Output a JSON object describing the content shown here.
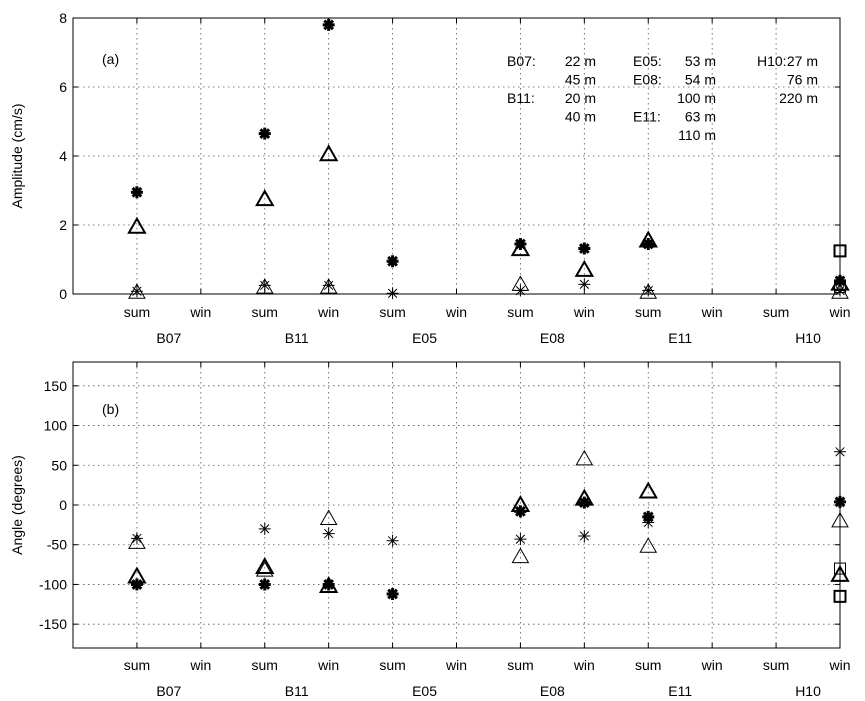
{
  "chart_data": [
    {
      "type": "scatter",
      "panel_label": "(a)",
      "ylabel": "Amplitude (cm/s)",
      "ylim": [
        0,
        8
      ],
      "yticks": [
        0,
        2,
        4,
        6,
        8
      ],
      "xlim": [
        0,
        12
      ],
      "x_ticks": [
        {
          "x": 1,
          "label": "sum"
        },
        {
          "x": 2,
          "label": "win"
        },
        {
          "x": 3,
          "label": "sum"
        },
        {
          "x": 4,
          "label": "win"
        },
        {
          "x": 5,
          "label": "sum"
        },
        {
          "x": 6,
          "label": "win"
        },
        {
          "x": 7,
          "label": "sum"
        },
        {
          "x": 8,
          "label": "win"
        },
        {
          "x": 9,
          "label": "sum"
        },
        {
          "x": 10,
          "label": "win"
        },
        {
          "x": 11,
          "label": "sum"
        },
        {
          "x": 12,
          "label": "win"
        }
      ],
      "groups": [
        {
          "x": 1.5,
          "label": "B07"
        },
        {
          "x": 3.5,
          "label": "B11"
        },
        {
          "x": 5.5,
          "label": "E05"
        },
        {
          "x": 7.5,
          "label": "E08"
        },
        {
          "x": 9.5,
          "label": "E11"
        },
        {
          "x": 11.5,
          "label": "H10"
        }
      ],
      "grid": true,
      "annotations": [
        {
          "col": 0,
          "row": 0,
          "station": "B07:",
          "depth": "22 m"
        },
        {
          "col": 0,
          "row": 1,
          "station": "",
          "depth": "45 m"
        },
        {
          "col": 0,
          "row": 2,
          "station": "B11:",
          "depth": "20 m"
        },
        {
          "col": 0,
          "row": 3,
          "station": "",
          "depth": "40 m"
        },
        {
          "col": 1,
          "row": 0,
          "station": "E05:",
          "depth": "53 m"
        },
        {
          "col": 1,
          "row": 1,
          "station": "E08:",
          "depth": "54 m"
        },
        {
          "col": 1,
          "row": 2,
          "station": "",
          "depth": "100 m"
        },
        {
          "col": 1,
          "row": 3,
          "station": "E11:",
          "depth": "63 m"
        },
        {
          "col": 1,
          "row": 4,
          "station": "",
          "depth": "110 m"
        },
        {
          "col": 2,
          "row": 0,
          "station": "H10:",
          "depth": "27 m"
        },
        {
          "col": 2,
          "row": 1,
          "station": "",
          "depth": "76 m"
        },
        {
          "col": 2,
          "row": 2,
          "station": "",
          "depth": "220 m"
        }
      ],
      "points": [
        {
          "x": 1,
          "y": 2.95,
          "marker": "star-bold"
        },
        {
          "x": 1,
          "y": 1.95,
          "marker": "triangle-bold"
        },
        {
          "x": 1,
          "y": 0.08,
          "marker": "star"
        },
        {
          "x": 1,
          "y": 0.05,
          "marker": "triangle"
        },
        {
          "x": 3,
          "y": 4.65,
          "marker": "star-bold"
        },
        {
          "x": 3,
          "y": 2.75,
          "marker": "triangle-bold"
        },
        {
          "x": 3,
          "y": 0.25,
          "marker": "star"
        },
        {
          "x": 3,
          "y": 0.2,
          "marker": "triangle"
        },
        {
          "x": 4,
          "y": 7.8,
          "marker": "star-bold"
        },
        {
          "x": 4,
          "y": 4.05,
          "marker": "triangle-bold"
        },
        {
          "x": 4,
          "y": 0.25,
          "marker": "star"
        },
        {
          "x": 4,
          "y": 0.2,
          "marker": "triangle"
        },
        {
          "x": 5,
          "y": 0.95,
          "marker": "star-bold"
        },
        {
          "x": 5,
          "y": 0.02,
          "marker": "star"
        },
        {
          "x": 7,
          "y": 1.45,
          "marker": "star-bold"
        },
        {
          "x": 7,
          "y": 1.3,
          "marker": "triangle-bold"
        },
        {
          "x": 7,
          "y": 0.28,
          "marker": "triangle"
        },
        {
          "x": 7,
          "y": 0.1,
          "marker": "star"
        },
        {
          "x": 8,
          "y": 1.32,
          "marker": "star-bold"
        },
        {
          "x": 8,
          "y": 0.7,
          "marker": "triangle-bold"
        },
        {
          "x": 8,
          "y": 0.28,
          "marker": "star"
        },
        {
          "x": 9,
          "y": 1.55,
          "marker": "triangle-bold"
        },
        {
          "x": 9,
          "y": 1.45,
          "marker": "star-bold"
        },
        {
          "x": 9,
          "y": 0.1,
          "marker": "star"
        },
        {
          "x": 9,
          "y": 0.05,
          "marker": "triangle"
        },
        {
          "x": 12,
          "y": 1.25,
          "marker": "square-bold"
        },
        {
          "x": 12,
          "y": 0.38,
          "marker": "star-bold"
        },
        {
          "x": 12,
          "y": 0.3,
          "marker": "triangle-bold"
        },
        {
          "x": 12,
          "y": 0.2,
          "marker": "square"
        },
        {
          "x": 12,
          "y": 0.1,
          "marker": "star"
        },
        {
          "x": 12,
          "y": 0.05,
          "marker": "triangle"
        }
      ]
    },
    {
      "type": "scatter",
      "panel_label": "(b)",
      "ylabel": "Angle (degrees)",
      "ylim": [
        -180,
        180
      ],
      "yticks": [
        -150,
        -100,
        -50,
        0,
        50,
        100,
        150
      ],
      "xlim": [
        0,
        12
      ],
      "x_ticks": [
        {
          "x": 1,
          "label": "sum"
        },
        {
          "x": 2,
          "label": "win"
        },
        {
          "x": 3,
          "label": "sum"
        },
        {
          "x": 4,
          "label": "win"
        },
        {
          "x": 5,
          "label": "sum"
        },
        {
          "x": 6,
          "label": "win"
        },
        {
          "x": 7,
          "label": "sum"
        },
        {
          "x": 8,
          "label": "win"
        },
        {
          "x": 9,
          "label": "sum"
        },
        {
          "x": 10,
          "label": "win"
        },
        {
          "x": 11,
          "label": "sum"
        },
        {
          "x": 12,
          "label": "win"
        }
      ],
      "groups": [
        {
          "x": 1.5,
          "label": "B07"
        },
        {
          "x": 3.5,
          "label": "B11"
        },
        {
          "x": 5.5,
          "label": "E05"
        },
        {
          "x": 7.5,
          "label": "E08"
        },
        {
          "x": 9.5,
          "label": "E11"
        },
        {
          "x": 11.5,
          "label": "H10"
        }
      ],
      "grid": true,
      "points": [
        {
          "x": 1,
          "y": -42,
          "marker": "star"
        },
        {
          "x": 1,
          "y": -47,
          "marker": "triangle"
        },
        {
          "x": 1,
          "y": -90,
          "marker": "triangle-bold"
        },
        {
          "x": 1,
          "y": -100,
          "marker": "star-bold"
        },
        {
          "x": 3,
          "y": -30,
          "marker": "star"
        },
        {
          "x": 3,
          "y": -78,
          "marker": "triangle-bold"
        },
        {
          "x": 3,
          "y": -82,
          "marker": "triangle"
        },
        {
          "x": 3,
          "y": -100,
          "marker": "star-bold"
        },
        {
          "x": 4,
          "y": -17,
          "marker": "triangle"
        },
        {
          "x": 4,
          "y": -36,
          "marker": "star"
        },
        {
          "x": 4,
          "y": -100,
          "marker": "star-bold"
        },
        {
          "x": 4,
          "y": -102,
          "marker": "triangle-bold"
        },
        {
          "x": 5,
          "y": -45,
          "marker": "star"
        },
        {
          "x": 5,
          "y": -112,
          "marker": "star-bold"
        },
        {
          "x": 7,
          "y": 0,
          "marker": "triangle-bold"
        },
        {
          "x": 7,
          "y": -8,
          "marker": "star-bold"
        },
        {
          "x": 7,
          "y": -43,
          "marker": "star"
        },
        {
          "x": 7,
          "y": -65,
          "marker": "triangle"
        },
        {
          "x": 8,
          "y": 58,
          "marker": "triangle"
        },
        {
          "x": 8,
          "y": 8,
          "marker": "triangle-bold"
        },
        {
          "x": 8,
          "y": 3,
          "marker": "star-bold"
        },
        {
          "x": 8,
          "y": -39,
          "marker": "star"
        },
        {
          "x": 9,
          "y": 17,
          "marker": "triangle-bold"
        },
        {
          "x": 9,
          "y": -15,
          "marker": "star-bold"
        },
        {
          "x": 9,
          "y": -22,
          "marker": "star"
        },
        {
          "x": 9,
          "y": -52,
          "marker": "triangle"
        },
        {
          "x": 12,
          "y": 67,
          "marker": "star"
        },
        {
          "x": 12,
          "y": 4,
          "marker": "star-bold"
        },
        {
          "x": 12,
          "y": -20,
          "marker": "triangle"
        },
        {
          "x": 12,
          "y": -80,
          "marker": "square"
        },
        {
          "x": 12,
          "y": -88,
          "marker": "triangle-bold"
        },
        {
          "x": 12,
          "y": -115,
          "marker": "square-bold"
        }
      ]
    }
  ]
}
